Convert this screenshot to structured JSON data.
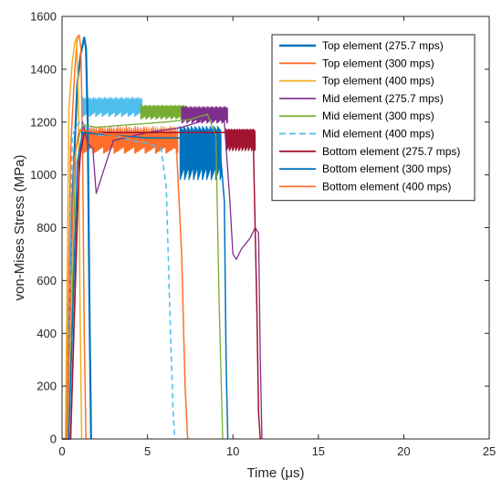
{
  "chart_data": {
    "type": "line",
    "title": "",
    "xlabel": "Time (μs)",
    "ylabel": "von-Mises Stress (MPa)",
    "xlim": [
      0,
      25
    ],
    "ylim": [
      0,
      1600
    ],
    "xticks": [
      0,
      5,
      10,
      15,
      20,
      25
    ],
    "yticks": [
      0,
      200,
      400,
      600,
      800,
      1000,
      1200,
      1400,
      1600
    ],
    "grid": false,
    "legend_position": "top-right",
    "series": [
      {
        "name": "Top element (275.7 mps)",
        "color": "#0072BD",
        "style": "solid",
        "width": 2.2,
        "x": [
          0,
          0.3,
          0.6,
          0.9,
          1.1,
          1.3,
          1.4,
          1.5,
          1.6,
          1.7
        ],
        "y": [
          0,
          0,
          900,
          1350,
          1460,
          1520,
          1480,
          1200,
          500,
          0
        ]
      },
      {
        "name": "Top element (300 mps)",
        "color": "#FF6F2A",
        "style": "solid",
        "width": 1.5,
        "x": [
          0,
          0.25,
          0.5,
          0.75,
          0.9,
          1.0,
          1.1,
          1.2,
          1.3,
          1.4
        ],
        "y": [
          0,
          0,
          1100,
          1400,
          1520,
          1530,
          1480,
          1100,
          400,
          0
        ]
      },
      {
        "name": "Top element (400 mps)",
        "color": "#EDB120",
        "style": "solid",
        "width": 1.5,
        "x": [
          0,
          0.2,
          0.4,
          0.6,
          0.75,
          0.85,
          0.95,
          1.05,
          1.15
        ],
        "y": [
          0,
          0,
          1250,
          1430,
          1500,
          1520,
          1300,
          500,
          0
        ]
      },
      {
        "name": "Mid element (275.7 mps)",
        "color": "#7E2F8E",
        "style": "solid",
        "width": 1.3,
        "x": [
          0,
          0.5,
          0.9,
          1.2,
          1.5,
          1.8,
          2.0,
          3,
          5,
          7,
          8,
          9,
          9.5,
          9.8,
          10,
          10.2,
          10.5,
          11,
          11.3,
          11.5,
          11.6,
          11.7
        ],
        "y": [
          0,
          0,
          900,
          1200,
          1120,
          1100,
          930,
          1130,
          1160,
          1180,
          1200,
          1220,
          1200,
          920,
          700,
          680,
          720,
          760,
          800,
          780,
          300,
          0
        ]
      },
      {
        "name": "Mid element (300 mps)",
        "color": "#77AC30",
        "style": "solid",
        "width": 1.3,
        "x": [
          0,
          0.4,
          0.8,
          1.2,
          2,
          4,
          6,
          7.5,
          8.5,
          9.0,
          9.2,
          9.4
        ],
        "y": [
          0,
          0,
          1100,
          1190,
          1180,
          1190,
          1200,
          1210,
          1230,
          1150,
          500,
          0
        ]
      },
      {
        "name": "Mid element (400 mps)",
        "color": "#4DBEEE",
        "style": "dashed",
        "width": 1.5,
        "x": [
          0,
          0.3,
          0.6,
          1.0,
          2,
          3,
          4,
          5,
          5.8,
          6.1,
          6.3,
          6.5,
          6.6
        ],
        "y": [
          0,
          0,
          1150,
          1200,
          1150,
          1150,
          1130,
          1120,
          1100,
          950,
          500,
          100,
          0
        ]
      },
      {
        "name": "Bottom element (275.7 mps)",
        "color": "#A2142F",
        "style": "solid",
        "width": 1.5,
        "x": [
          0,
          0.5,
          1.0,
          1.3,
          3,
          5,
          7,
          9,
          10,
          10.5,
          11,
          11.2,
          11.4,
          11.5,
          11.6
        ],
        "y": [
          0,
          0,
          1050,
          1160,
          1160,
          1160,
          1160,
          1160,
          1160,
          1160,
          1160,
          1100,
          500,
          100,
          0
        ]
      },
      {
        "name": "Bottom element (300 mps)",
        "color": "#0072BD",
        "style": "solid",
        "width": 1.5,
        "x": [
          0,
          0.4,
          0.9,
          1.2,
          3,
          5,
          7,
          8.5,
          9.2,
          9.5,
          9.6,
          9.7
        ],
        "y": [
          0,
          0,
          1050,
          1160,
          1150,
          1140,
          1140,
          1140,
          1140,
          900,
          300,
          0
        ]
      },
      {
        "name": "Bottom element (400 mps)",
        "color": "#FF6F2A",
        "style": "solid",
        "width": 1.5,
        "x": [
          0,
          0.3,
          0.7,
          1.0,
          2,
          3,
          4,
          5,
          6,
          6.7,
          7.0,
          7.2,
          7.35
        ],
        "y": [
          0,
          0,
          1050,
          1170,
          1160,
          1150,
          1140,
          1130,
          1120,
          1100,
          700,
          200,
          0
        ]
      }
    ],
    "bands": [
      {
        "color": "#4DBEEE",
        "x0": 1.2,
        "x1": 4.7,
        "ylo": 1220,
        "yhi": 1295
      },
      {
        "color": "#77AC30",
        "x0": 4.6,
        "x1": 7.3,
        "ylo": 1210,
        "yhi": 1265
      },
      {
        "color": "#7E2F8E",
        "x0": 7.0,
        "x1": 9.7,
        "ylo": 1195,
        "yhi": 1260
      },
      {
        "color": "#A2142F",
        "x0": 9.6,
        "x1": 11.3,
        "ylo": 1090,
        "yhi": 1175
      },
      {
        "color": "#0072BD",
        "x0": 6.9,
        "x1": 9.3,
        "ylo": 980,
        "yhi": 1185
      },
      {
        "color": "#FF6F2A",
        "x0": 1.2,
        "x1": 6.8,
        "ylo": 1080,
        "yhi": 1185
      }
    ]
  }
}
